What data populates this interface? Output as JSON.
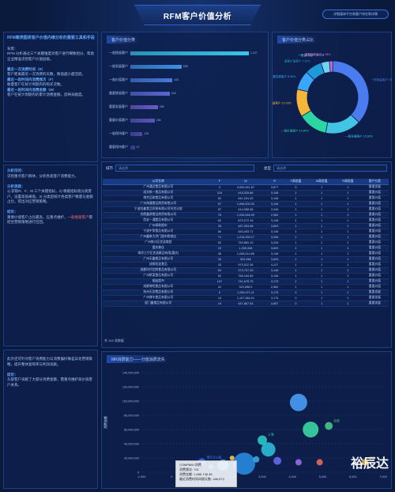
{
  "header": {
    "title": "RFM客户价值分析",
    "right_button": "详细媒体平台和客户排名和详情"
  },
  "intro": {
    "heading": "RFM聚类图表客户价值内维分析的重要工具和手段",
    "bg_label": "背景：",
    "bg_text": "RFM 分析通过三个关键维度对客户进行细致划分，帮助企业精准识别客户价值层级。",
    "r_title": "最近一次消费时间（R）",
    "r_text": "客户距离最近一次消费的天数，数值越小越活跃。",
    "f_title": "最近一段时间内消费频次（F）",
    "f_text": "衡量客户在统计周期内的购买次数。",
    "m_title": "最近一段时间内消费金额（M）",
    "m_text": "客户在统计周期内的累计消费金额，反映贡献度。"
  },
  "analysis": {
    "goal_title": "分析目的：",
    "goal_text": "识别重点客户群体，分析各类客户消费能力。",
    "method_title": "分析思路：",
    "method_text": "1) 获取R、F、M 三个关键指标。2) 根据指标值分类客户，设置高低阈值。3) 分类后统计各类客户数量与金额占比，得出对应营销策略。",
    "conclusion_title": "结论：",
    "conclusion_text": "重要价值客户占比最高，应重点维护，",
    "conclusion_red": "一般挽留客户",
    "conclusion_tail": "需结合营销策略进行召回。"
  },
  "bottom_left": {
    "text": "此外还可针对客户消费能力与消费偏好做差异化营销策略，提升整体复购率与利润贡献。",
    "conclusion_title": "结论：",
    "conclusion_text": "头部客户贡献了大部分消费金额，需重点维护高价值客户关系。"
  },
  "bar_panel": {
    "title": "客户价值分类",
    "bars": [
      {
        "label": "一般挽留客户",
        "value": 1247,
        "color": "#39c6e8"
      },
      {
        "label": "一般发展客户",
        "value": 538,
        "color": "#3d8fe0"
      },
      {
        "label": "一般价值客户",
        "value": 443,
        "color": "#4a78d8"
      },
      {
        "label": "重要挽留客户",
        "value": 415,
        "color": "#5a67d0"
      },
      {
        "label": "重要发展客户",
        "value": 289,
        "color": "#6a5bc8"
      },
      {
        "label": "重要价值客户",
        "value": 256,
        "color": "#5a55b8"
      },
      {
        "label": "一般保持客户",
        "value": 128,
        "color": "#4b4aa6"
      },
      {
        "label": "重要保持客户",
        "value": 47,
        "color": "#3f3f92"
      }
    ]
  },
  "donut_panel": {
    "title": "客户价值分类占比",
    "slices": [
      {
        "label": "一般挽留客户",
        "pct": "36.16%",
        "value": 36.16,
        "color": "#4a7cf0"
      },
      {
        "label": "一般发展客户",
        "pct": "15.60%",
        "value": 15.6,
        "color": "#42c5e5"
      },
      {
        "label": "一般价值客户",
        "pct": "12.84%",
        "value": 12.84,
        "color": "#2bd6a3"
      },
      {
        "label": "重要挽留客户",
        "pct": "12.03%",
        "value": 12.03,
        "color": "#f5b63a"
      },
      {
        "label": "重要发展客户",
        "pct": "8.38%",
        "value": 8.38,
        "color": "#3aa6ff"
      },
      {
        "label": "重要价值客户",
        "pct": "7.42%",
        "value": 7.42,
        "color": "#1f9ad6"
      },
      {
        "label": "一般保持客户",
        "pct": "3.71%",
        "value": 3.71,
        "color": "#6fd4f2"
      },
      {
        "label": "重要保持客户",
        "pct": "1.36%",
        "value": 1.36,
        "color": "#e66ad6"
      }
    ],
    "callouts": [
      "一般挽留客户 36.16%",
      "重要价值客户 7.42%",
      "一般价值客户 12.84%",
      "重要发展客户 8.38%",
      "重要挽留客户 12.03%",
      "一般发展客户 15.60%"
    ]
  },
  "filters": {
    "city_label": "城市",
    "city_placeholder": "请选择",
    "type_label": "类型",
    "type_placeholder": "请选择"
  },
  "table": {
    "headers": [
      "公司名称",
      "F",
      "M",
      "R",
      "F高低值",
      "M高低值",
      "R高低值",
      "客户分类"
    ],
    "rows": [
      [
        "广州通达食品有限公司",
        "3",
        "4,549,941.67",
        "3,877",
        "0",
        "1",
        "1",
        "重要发展"
      ],
      [
        "成文新一食品有限公司",
        "118",
        "418,326.86",
        "3,146",
        "1",
        "1",
        "1",
        "重要价值"
      ],
      [
        "南京品联食品有限公司",
        "62",
        "941,231.02",
        "3,146",
        "1",
        "1",
        "1",
        "重要价值"
      ],
      [
        "广州海通食品商贸有限公司",
        "57",
        "1,696,500.33",
        "3,146",
        "1",
        "1",
        "1",
        "重要价值"
      ],
      [
        "宁波金鑫食品贸易有限公司托克分部",
        "87",
        "414,358.58",
        "3,146",
        "1",
        "1",
        "1",
        "重要价值"
      ],
      [
        "合肥鑫源食品商贸有限公司",
        "76",
        "1,035,546.93",
        "2,962",
        "1",
        "1",
        "1",
        "重要价值"
      ],
      [
        "西安一通食品有限公司",
        "62",
        "879,272.16",
        "3,146",
        "1",
        "1",
        "1",
        "重要价值"
      ],
      [
        "广州易联超市",
        "35",
        "487,263.88",
        "3,693",
        "1",
        "1",
        "1",
        "重要价值"
      ],
      [
        "宁波中荣食品有限公司",
        "60",
        "643,493.71",
        "3,146",
        "1",
        "1",
        "1",
        "重要价值"
      ],
      [
        "广州鑫联大宗门超市联锁店",
        "71",
        "1,215,259.17",
        "3,206",
        "1",
        "1",
        "1",
        "重要价值"
      ],
      [
        "广州南沙区优选商超",
        "52",
        "753,860.13",
        "3,206",
        "1",
        "1",
        "1",
        "重要价值"
      ],
      [
        "重庆美佳",
        "23",
        "1,259,348",
        "3,693",
        "1",
        "1",
        "1",
        "重要价值"
      ],
      [
        "海京江宁区优选精品有限(重庆)",
        "36",
        "1,006,414.89",
        "3,146",
        "1",
        "1",
        "1",
        "重要价值"
      ],
      [
        "广州天鑫食品有限公司",
        "33",
        "924,969",
        "3,693",
        "1",
        "1",
        "1",
        "重要价值"
      ],
      [
        "成都优选食品",
        "33",
        "973,312.36",
        "4,127",
        "1",
        "1",
        "1",
        "重要价值"
      ],
      [
        "成都时代优鲜食品有限公司",
        "53",
        "373,707.43",
        "3,146",
        "1",
        "1",
        "1",
        "重要价值"
      ],
      [
        "广州鲜菜食品有限公司",
        "52",
        "766,154.89",
        "3,146",
        "1",
        "1",
        "1",
        "重要价值"
      ],
      [
        "顺益超市",
        "107",
        "741,678.75",
        "3,175",
        "1",
        "1",
        "1",
        "重要价值"
      ],
      [
        "成都博恒食品有限公司",
        "41",
        "322,658.9",
        "2,962",
        "1",
        "1",
        "1",
        "重要价值"
      ],
      [
        "杭州天欣食品有限公司",
        "9",
        "1,256,971.11",
        "3,175",
        "0",
        "1",
        "1",
        "重要发展"
      ],
      [
        "广州博丰食品有限公司",
        "14",
        "1,107,384.21",
        "3,175",
        "0",
        "1",
        "1",
        "重要发展"
      ],
      [
        "厦门鑫食品有限公司",
        "19",
        "647,867.54",
        "4,667",
        "0",
        "1",
        "1",
        "重要发展"
      ]
    ]
  },
  "pager": {
    "total": "共",
    "count": "163",
    "suffix": "条数据"
  },
  "scatter_panel": {
    "title": "MR消费能力——分值消费流失"
  },
  "tooltip": {
    "name": "COMPANY消费",
    "line1": "消费频次: 701",
    "line2": "消费金额: 1,688,748.35",
    "line3": "最近消费时间间隔天数: 188,573"
  },
  "watermark": "裕辰达",
  "chart_data": {
    "type": "scatter",
    "title": "MR消费能力——分值消费流失",
    "ylabel": "消费金额",
    "xlabel": "",
    "xlim": [
      -1000,
      7000
    ],
    "ylim": [
      0,
      140000000
    ],
    "xticks": [
      "-1,000",
      "0",
      "1,000",
      "2,000",
      "3,000",
      "4,000",
      "5,000",
      "6,000",
      "7,000"
    ],
    "yticks": [
      "0",
      "20,000,000",
      "40,000,000",
      "60,000,000",
      "80,000,000",
      "100,000,000",
      "120,000,000",
      "140,000,000"
    ],
    "points": [
      {
        "x": 4200,
        "y": 98000000,
        "r": 11,
        "color": "#4da3ff",
        "label": ""
      },
      {
        "x": 4600,
        "y": 60000000,
        "r": 10,
        "color": "#3fe0a8",
        "label": ""
      },
      {
        "x": 5200,
        "y": 65000000,
        "r": 5,
        "color": "#4ad08c",
        "label": "全国"
      },
      {
        "x": 3000,
        "y": 45000000,
        "r": 6,
        "color": "#2ad1c9",
        "label": "上海"
      },
      {
        "x": 3200,
        "y": 32000000,
        "r": 9,
        "color": "#2fc6e0",
        "label": ""
      },
      {
        "x": 2400,
        "y": 12000000,
        "r": 14,
        "color": "#2a8fe6",
        "label": ""
      },
      {
        "x": 1700,
        "y": 10000000,
        "r": 7,
        "color": "#5ad0f0",
        "label": ""
      },
      {
        "x": 1000,
        "y": 14000000,
        "r": 5,
        "color": "#3a6ef0",
        "label": "重庆文山路"
      },
      {
        "x": 3500,
        "y": 16000000,
        "r": 5,
        "color": "#6b6cf5",
        "label": ""
      },
      {
        "x": 4200,
        "y": 14000000,
        "r": 4,
        "color": "#a070f0",
        "label": ""
      },
      {
        "x": 4900,
        "y": 14000000,
        "r": 4,
        "color": "#f07060",
        "label": ""
      },
      {
        "x": 6400,
        "y": 14000000,
        "r": 4,
        "color": "#f5b63a",
        "label": "武汉"
      },
      {
        "x": 2800,
        "y": 18000000,
        "r": 4,
        "color": "#40b0e0",
        "label": ""
      },
      {
        "x": 1300,
        "y": 8000000,
        "r": 3,
        "color": "#3fe0a8",
        "label": ""
      },
      {
        "x": 2000,
        "y": 20000000,
        "r": 3,
        "color": "#ffd15a",
        "label": ""
      }
    ]
  }
}
